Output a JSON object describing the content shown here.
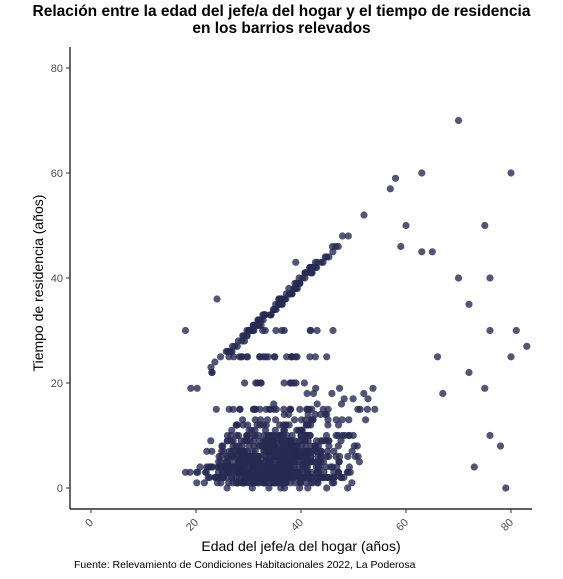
{
  "chart_data": {
    "type": "scatter",
    "title_line1": "Relación entre la edad del jefe/a del hogar y el tiempo de residencia",
    "title_line2": "en los barrios relevados",
    "xlabel": "Edad del jefe/a del hogar (años)",
    "ylabel": "Tiempo de residencia (años)",
    "caption": "Fuente: Relevamiento de Condiciones Habitacionales 2022, La Poderosa",
    "xlim": [
      -4,
      84
    ],
    "ylim": [
      -4,
      84
    ],
    "x_ticks": [
      "0",
      "20",
      "40",
      "60",
      "80"
    ],
    "y_ticks": [
      "0",
      "20",
      "40",
      "60",
      "80"
    ],
    "x_tick_values": [
      0,
      20,
      40,
      60,
      80
    ],
    "y_tick_values": [
      0,
      20,
      40,
      60,
      80
    ],
    "grid": false,
    "point_color": "#272a52",
    "point_opacity": 0.8,
    "notable_points": [
      {
        "x": 70,
        "y": 70
      },
      {
        "x": 80,
        "y": 60
      },
      {
        "x": 63,
        "y": 60
      },
      {
        "x": 58,
        "y": 59
      },
      {
        "x": 57,
        "y": 57
      },
      {
        "x": 52,
        "y": 52
      },
      {
        "x": 60,
        "y": 50
      },
      {
        "x": 75,
        "y": 50
      },
      {
        "x": 46,
        "y": 46
      },
      {
        "x": 49,
        "y": 48
      },
      {
        "x": 59,
        "y": 46
      },
      {
        "x": 63,
        "y": 45
      },
      {
        "x": 65,
        "y": 45
      },
      {
        "x": 39,
        "y": 43
      },
      {
        "x": 24,
        "y": 36
      },
      {
        "x": 18,
        "y": 30
      },
      {
        "x": 72,
        "y": 35
      },
      {
        "x": 76,
        "y": 40
      },
      {
        "x": 70,
        "y": 40
      },
      {
        "x": 83,
        "y": 27
      },
      {
        "x": 81,
        "y": 30
      },
      {
        "x": 80,
        "y": 25
      },
      {
        "x": 79,
        "y": 0
      },
      {
        "x": 18,
        "y": 3
      },
      {
        "x": 19,
        "y": 19
      },
      {
        "x": 76,
        "y": 30
      },
      {
        "x": 72,
        "y": 22
      },
      {
        "x": 78,
        "y": 8
      },
      {
        "x": 73,
        "y": 4
      },
      {
        "x": 75,
        "y": 19
      },
      {
        "x": 76,
        "y": 10
      },
      {
        "x": 66,
        "y": 25
      },
      {
        "x": 67,
        "y": 18
      }
    ],
    "generated_points": {
      "count": 950,
      "age_range": [
        19,
        70
      ],
      "mode_age": 33,
      "max_residence_equals_age_minus": 0,
      "density_note": "dense cloud for ages 20-60 and residence 0-20; upper diagonal edge follows residence ≈ age"
    }
  }
}
